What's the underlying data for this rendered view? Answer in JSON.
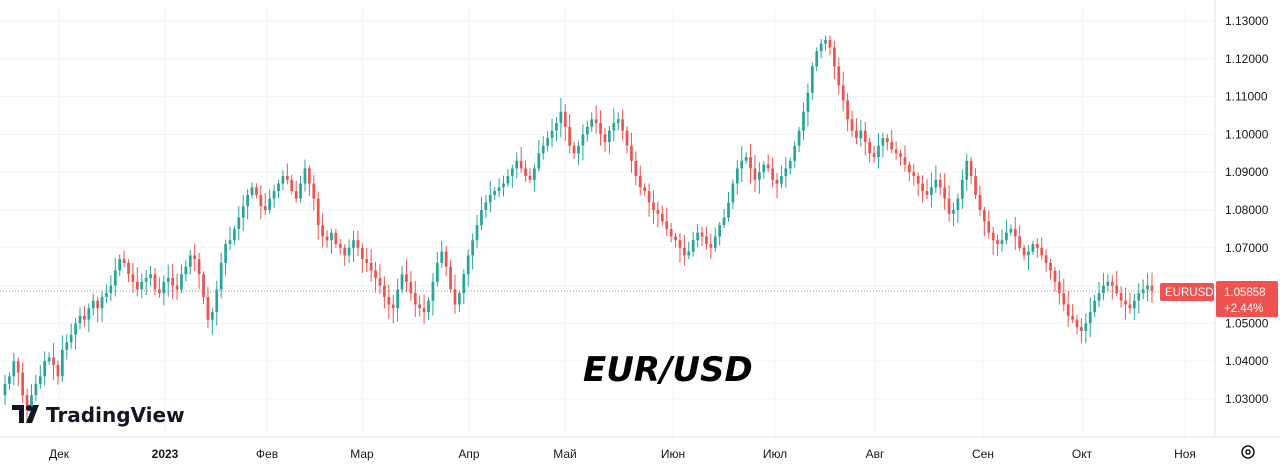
{
  "chart_data": {
    "type": "candlestick",
    "symbol": "EURUSD",
    "title": "EUR/USD",
    "last_price": "1.05858",
    "change": "+2.44%",
    "brand": "TradingView",
    "ylim": [
      1.025,
      1.132
    ],
    "y_ticks": [
      "1.13000",
      "1.12000",
      "1.11000",
      "1.10000",
      "1.09000",
      "1.08000",
      "1.07000",
      "1.06000",
      "1.05000",
      "1.04000",
      "1.03000"
    ],
    "x_ticks": [
      "Дек",
      "2023",
      "Фев",
      "Мар",
      "Апр",
      "Май",
      "Июн",
      "Июл",
      "Авг",
      "Сен",
      "Окт",
      "Ноя"
    ],
    "grid": true,
    "colors": {
      "up": "#26a69a",
      "down": "#ef5350",
      "grid": "#f0f3fa",
      "price_line": "#9598a1"
    },
    "series": [
      {
        "name": "EURUSD",
        "close_values": [
          1.034,
          1.036,
          1.04,
          1.037,
          1.031,
          1.027,
          1.031,
          1.034,
          1.036,
          1.04,
          1.041,
          1.039,
          1.036,
          1.043,
          1.045,
          1.047,
          1.05,
          1.052,
          1.051,
          1.054,
          1.056,
          1.054,
          1.057,
          1.058,
          1.06,
          1.064,
          1.067,
          1.066,
          1.063,
          1.061,
          1.059,
          1.061,
          1.062,
          1.063,
          1.059,
          1.058,
          1.061,
          1.062,
          1.06,
          1.059,
          1.063,
          1.065,
          1.068,
          1.067,
          1.063,
          1.057,
          1.051,
          1.053,
          1.059,
          1.066,
          1.071,
          1.072,
          1.075,
          1.078,
          1.081,
          1.084,
          1.086,
          1.084,
          1.081,
          1.08,
          1.083,
          1.085,
          1.087,
          1.089,
          1.088,
          1.085,
          1.083,
          1.087,
          1.091,
          1.087,
          1.083,
          1.076,
          1.073,
          1.072,
          1.074,
          1.071,
          1.07,
          1.068,
          1.07,
          1.072,
          1.07,
          1.067,
          1.066,
          1.064,
          1.062,
          1.06,
          1.057,
          1.055,
          1.054,
          1.059,
          1.063,
          1.061,
          1.058,
          1.055,
          1.054,
          1.053,
          1.056,
          1.061,
          1.066,
          1.069,
          1.065,
          1.059,
          1.055,
          1.058,
          1.063,
          1.068,
          1.072,
          1.076,
          1.08,
          1.082,
          1.084,
          1.085,
          1.086,
          1.087,
          1.089,
          1.091,
          1.093,
          1.091,
          1.089,
          1.088,
          1.091,
          1.095,
          1.097,
          1.099,
          1.101,
          1.103,
          1.106,
          1.102,
          1.097,
          1.095,
          1.097,
          1.1,
          1.102,
          1.104,
          1.103,
          1.1,
          1.098,
          1.101,
          1.103,
          1.104,
          1.101,
          1.097,
          1.093,
          1.089,
          1.086,
          1.085,
          1.082,
          1.08,
          1.079,
          1.077,
          1.075,
          1.073,
          1.072,
          1.07,
          1.068,
          1.069,
          1.072,
          1.074,
          1.073,
          1.071,
          1.07,
          1.073,
          1.076,
          1.078,
          1.082,
          1.087,
          1.091,
          1.093,
          1.094,
          1.091,
          1.088,
          1.09,
          1.092,
          1.091,
          1.088,
          1.087,
          1.089,
          1.091,
          1.093,
          1.097,
          1.101,
          1.106,
          1.111,
          1.118,
          1.122,
          1.124,
          1.125,
          1.123,
          1.118,
          1.113,
          1.109,
          1.104,
          1.101,
          1.099,
          1.101,
          1.098,
          1.095,
          1.094,
          1.097,
          1.099,
          1.098,
          1.096,
          1.095,
          1.094,
          1.092,
          1.09,
          1.089,
          1.087,
          1.085,
          1.084,
          1.086,
          1.088,
          1.086,
          1.083,
          1.079,
          1.08,
          1.083,
          1.088,
          1.093,
          1.089,
          1.084,
          1.08,
          1.077,
          1.074,
          1.072,
          1.071,
          1.072,
          1.074,
          1.075,
          1.073,
          1.07,
          1.068,
          1.069,
          1.071,
          1.07,
          1.068,
          1.066,
          1.064,
          1.061,
          1.058,
          1.055,
          1.052,
          1.051,
          1.049,
          1.048,
          1.05,
          1.053,
          1.056,
          1.058,
          1.06,
          1.061,
          1.06,
          1.058,
          1.056,
          1.055,
          1.054,
          1.056,
          1.058,
          1.059,
          1.06,
          1.0586
        ]
      }
    ]
  }
}
